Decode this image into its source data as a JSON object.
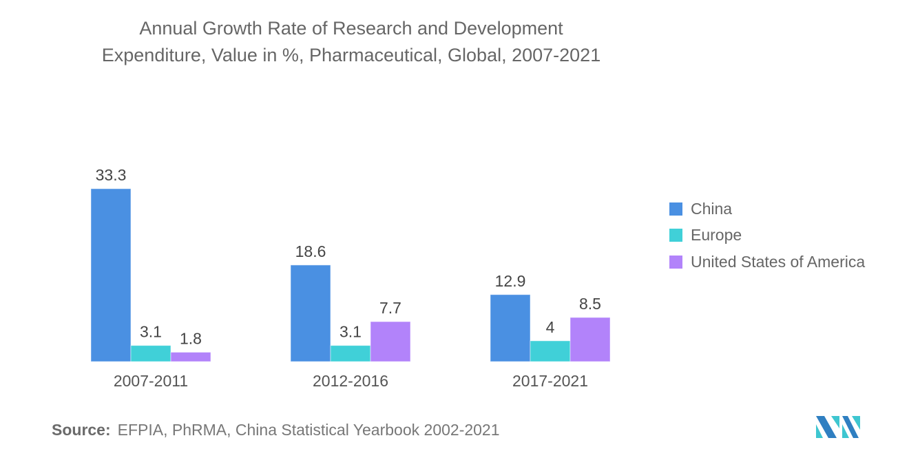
{
  "title_line1": "Annual Growth Rate of Research and Development",
  "title_line2": "Expenditure, Value in %, Pharmaceutical, Global, 2007-2021",
  "source_label": "Source:",
  "source_text": "EFPIA, PhRMA, China Statistical Yearbook 2002-2021",
  "logo": "mordor-intelligence-logo",
  "chart_data": {
    "type": "bar",
    "title": "Annual Growth Rate of Research and Development Expenditure, Value in %, Pharmaceutical, Global, 2007-2021",
    "xlabel": "",
    "ylabel": "",
    "categories": [
      "2007-2011",
      "2012-2016",
      "2017-2021"
    ],
    "series": [
      {
        "name": "China",
        "color": "#4a90e2",
        "values": [
          33.3,
          18.6,
          12.9
        ]
      },
      {
        "name": "Europe",
        "color": "#40d0d8",
        "values": [
          3.1,
          3.1,
          4
        ]
      },
      {
        "name": "United States of America",
        "color": "#b283fa",
        "values": [
          1.8,
          7.7,
          8.5
        ]
      }
    ],
    "data_labels": [
      [
        "33.3",
        "18.6",
        "12.9"
      ],
      [
        "3.1",
        "3.1",
        "4"
      ],
      [
        "1.8",
        "7.7",
        "8.5"
      ]
    ],
    "ylim": [
      0,
      33.3
    ],
    "grid": false,
    "legend_position": "right"
  }
}
